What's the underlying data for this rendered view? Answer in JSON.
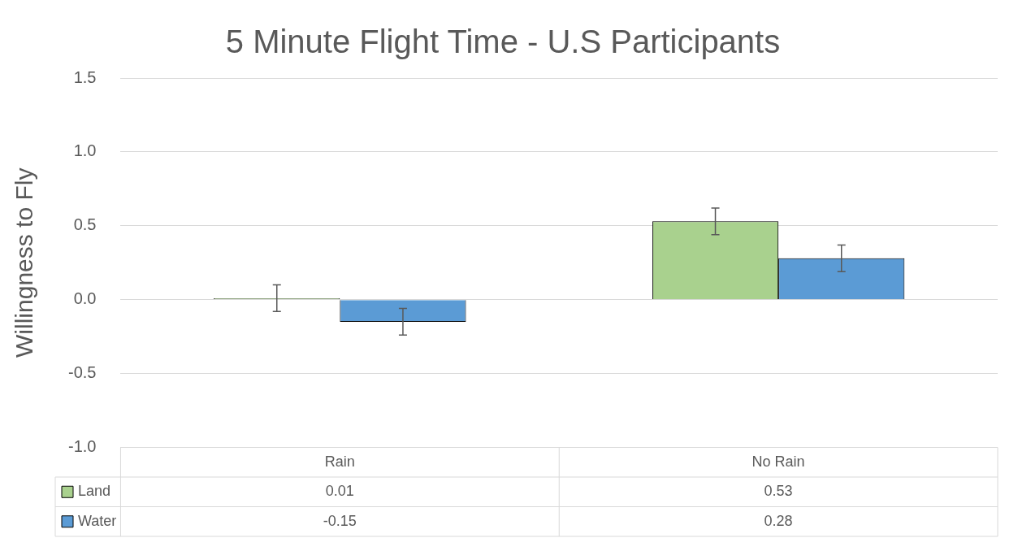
{
  "chart_data": {
    "type": "bar",
    "title": "5 Minute Flight Time - U.S Participants",
    "ylabel": "Willingness to Fly",
    "categories": [
      "Rain",
      "No Rain"
    ],
    "series": [
      {
        "name": "Land",
        "color": "#a9d18e",
        "values": [
          0.01,
          0.53
        ],
        "errors": [
          0.09,
          0.09
        ]
      },
      {
        "name": "Water",
        "color": "#5b9bd5",
        "values": [
          -0.15,
          0.28
        ],
        "errors": [
          0.09,
          0.09
        ]
      }
    ],
    "ylim": [
      -1,
      1.5
    ],
    "yticks": [
      {
        "value": -1,
        "label": "-1.0"
      },
      {
        "value": -0.5,
        "label": "-0.5"
      },
      {
        "value": 0,
        "label": "0.0"
      },
      {
        "value": 0.5,
        "label": "0.5"
      },
      {
        "value": 1,
        "label": "1.0"
      },
      {
        "value": 1.5,
        "label": "1.5"
      }
    ],
    "grid": "y",
    "legend": "bottom",
    "data_labels": true
  }
}
